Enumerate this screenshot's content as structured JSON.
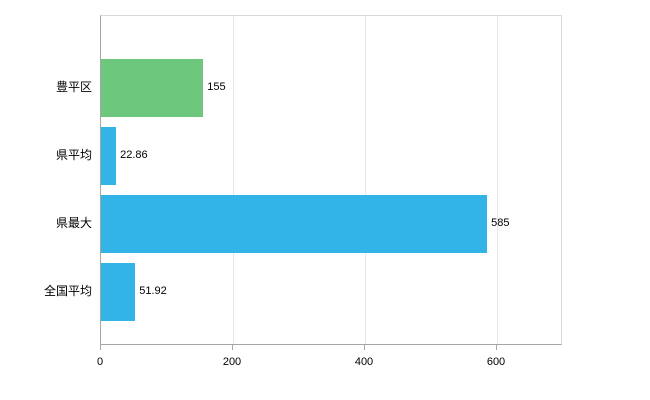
{
  "chart_data": {
    "type": "bar",
    "orientation": "horizontal",
    "title": "",
    "xlabel": "",
    "ylabel": "",
    "categories": [
      "豊平区",
      "県平均",
      "県最大",
      "全国平均"
    ],
    "values": [
      155,
      22.86,
      585,
      51.92
    ],
    "value_labels": [
      "155",
      "22.86",
      "585",
      "51.92"
    ],
    "bar_colors": [
      "#6dc77d",
      "#33b4e6",
      "#33b4e6",
      "#33b4e6"
    ],
    "x_ticks": [
      0,
      200,
      400,
      600
    ],
    "x_tick_labels": [
      "0",
      "200",
      "400",
      "600"
    ],
    "xlim": [
      0,
      700
    ],
    "grid": true,
    "legend": "none"
  }
}
